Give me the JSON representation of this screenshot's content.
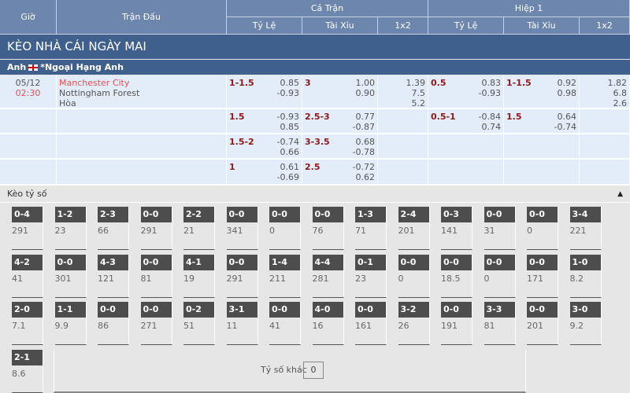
{
  "header": {
    "gio": "Giờ",
    "tran_dau": "Trận Đấu",
    "ca_tran": "Cả Trận",
    "hiep1": "Hiệp 1",
    "ty_le": "Tỷ Lệ",
    "tai_xiu": "Tài Xỉu",
    "x12": "1x2"
  },
  "title": "KÈO NHÀ CÁI NGÀY MAI",
  "league": {
    "country": "Anh",
    "name": "*Ngoại Hạng Anh"
  },
  "match": {
    "date": "05/12",
    "time": "02:30",
    "home": "Manchester City",
    "away": "Nottingham Forest",
    "draw": "Hòa"
  },
  "rows": [
    {
      "tl": "1-1.5",
      "tl_a": "0.85",
      "tl_b": "-0.93",
      "tx": "3",
      "tx_a": "1.00",
      "tx_b": "0.90",
      "x1": "1.39",
      "x2": "7.5",
      "x3": "5.2",
      "htl": "0.5",
      "htl_a": "0.83",
      "htl_b": "-0.93",
      "htx": "1-1.5",
      "htx_a": "0.92",
      "htx_b": "0.98",
      "hx1": "1.82",
      "hx2": "6.8",
      "hx3": "2.6"
    },
    {
      "tl": "1.5",
      "tl_a": "-0.93",
      "tl_b": "0.85",
      "tx": "2.5-3",
      "tx_a": "0.77",
      "tx_b": "-0.87",
      "htl": "0.5-1",
      "htl_a": "-0.84",
      "htl_b": "0.74",
      "htx": "1.5",
      "htx_a": "0.64",
      "htx_b": "-0.74"
    },
    {
      "tl": "1.5-2",
      "tl_a": "-0.74",
      "tl_b": "0.66",
      "tx": "3-3.5",
      "tx_a": "0.68",
      "tx_b": "-0.78"
    },
    {
      "tl": "1",
      "tl_a": "0.61",
      "tl_b": "-0.69",
      "tx": "2.5",
      "tx_a": "-0.72",
      "tx_b": "0.62"
    }
  ],
  "scores_section": {
    "label": "Kèo tỷ số",
    "collapse_icon": "caret-up-icon",
    "other_label": "Tỷ số khác",
    "other_value": "0"
  },
  "scores": [
    [
      "0-4",
      "291"
    ],
    [
      "1-2",
      "23"
    ],
    [
      "2-3",
      "66"
    ],
    [
      "0-0",
      "291"
    ],
    [
      "2-2",
      "21"
    ],
    [
      "0-0",
      "341"
    ],
    [
      "0-0",
      "0"
    ],
    [
      "0-0",
      "76"
    ],
    [
      "1-3",
      "71"
    ],
    [
      "2-4",
      "201"
    ],
    [
      "0-3",
      "141"
    ],
    [
      "0-0",
      "31"
    ],
    [
      "0-0",
      "0"
    ],
    [
      "3-4",
      "221"
    ],
    [
      "4-2",
      "41"
    ],
    [
      "0-0",
      "301"
    ],
    [
      "4-3",
      "121"
    ],
    [
      "0-0",
      "81"
    ],
    [
      "4-1",
      "19"
    ],
    [
      "0-0",
      "291"
    ],
    [
      "1-4",
      "211"
    ],
    [
      "4-4",
      "281"
    ],
    [
      "0-1",
      "23"
    ],
    [
      "0-0",
      "0"
    ],
    [
      "0-0",
      "18.5"
    ],
    [
      "0-0",
      "0"
    ],
    [
      "0-0",
      "171"
    ],
    [
      "1-0",
      "8.2"
    ],
    [
      "2-0",
      "7.1"
    ],
    [
      "1-1",
      "9.9"
    ],
    [
      "0-0",
      "86"
    ],
    [
      "0-0",
      "271"
    ],
    [
      "0-2",
      "51"
    ],
    [
      "3-1",
      "11"
    ],
    [
      "0-0",
      "41"
    ],
    [
      "4-0",
      "16"
    ],
    [
      "0-0",
      "161"
    ],
    [
      "3-2",
      "26"
    ],
    [
      "0-0",
      "191"
    ],
    [
      "3-3",
      "81"
    ],
    [
      "0-0",
      "201"
    ],
    [
      "3-0",
      "9.2"
    ],
    [
      "2-1",
      "8.6"
    ]
  ]
}
